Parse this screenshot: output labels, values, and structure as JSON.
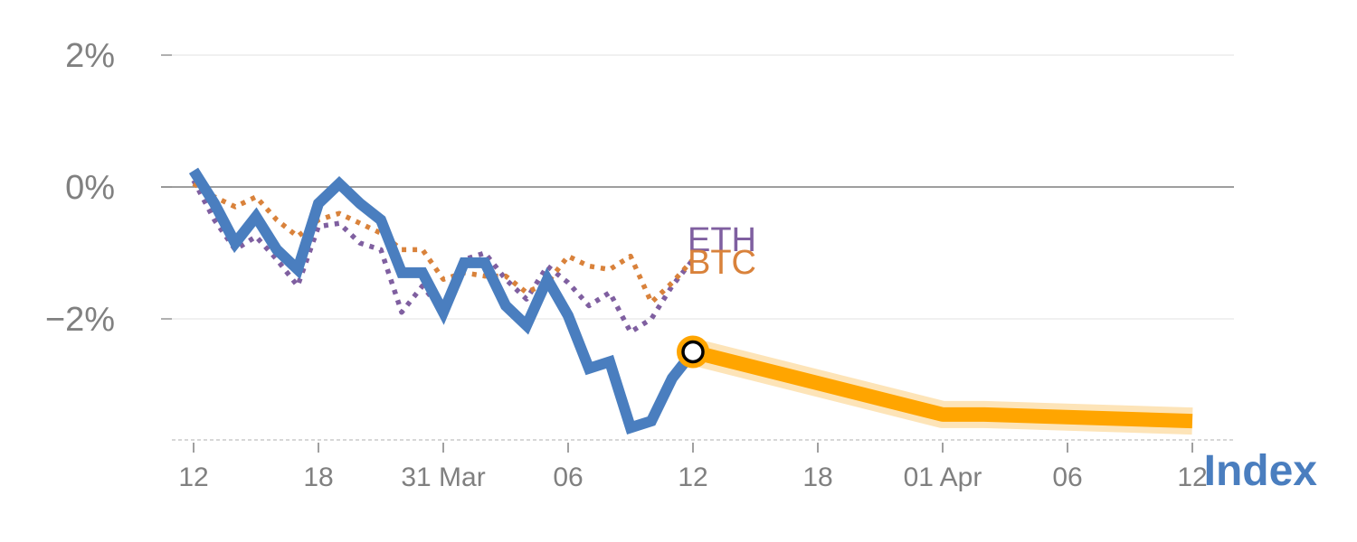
{
  "chart_data": {
    "type": "line",
    "title": "",
    "xlabel": "",
    "ylabel": "",
    "ylim": [
      -3.8,
      2.0
    ],
    "y_ticks": [
      {
        "value": 2,
        "label": "2%"
      },
      {
        "value": 0,
        "label": "0%"
      },
      {
        "value": -2,
        "label": "−2%"
      }
    ],
    "x_ticks": [
      {
        "x": 0,
        "label": "12"
      },
      {
        "x": 6,
        "label": "18"
      },
      {
        "x": 12,
        "label": "31 Mar"
      },
      {
        "x": 18,
        "label": "06"
      },
      {
        "x": 24,
        "label": "12"
      },
      {
        "x": 30,
        "label": "18"
      },
      {
        "x": 36,
        "label": "01 Apr"
      },
      {
        "x": 42,
        "label": "06"
      },
      {
        "x": 48,
        "label": "12"
      }
    ],
    "xlim": [
      -1,
      49
    ],
    "series": [
      {
        "name": "ETH",
        "style": "dotted",
        "color": "#7f5fa0",
        "x": [
          0,
          1,
          2,
          3,
          4,
          5,
          6,
          7,
          8,
          9,
          10,
          11,
          12,
          13,
          14,
          15,
          16,
          17,
          18,
          19,
          20,
          21,
          22,
          23,
          24
        ],
        "values": [
          0.1,
          -0.5,
          -0.95,
          -0.75,
          -1.1,
          -1.5,
          -0.6,
          -0.55,
          -0.85,
          -0.95,
          -1.9,
          -1.5,
          -1.9,
          -1.1,
          -1.0,
          -1.4,
          -1.7,
          -1.2,
          -1.45,
          -1.8,
          -1.6,
          -2.2,
          -2.0,
          -1.5,
          -1.1
        ]
      },
      {
        "name": "BTC",
        "style": "dotted",
        "color": "#d9823b",
        "x": [
          0,
          1,
          2,
          3,
          4,
          5,
          6,
          7,
          8,
          9,
          10,
          11,
          12,
          13,
          14,
          15,
          16,
          17,
          18,
          19,
          20,
          21,
          22,
          23,
          24
        ],
        "values": [
          0.05,
          -0.15,
          -0.3,
          -0.15,
          -0.5,
          -0.75,
          -0.5,
          -0.4,
          -0.55,
          -0.7,
          -0.95,
          -0.95,
          -1.4,
          -1.3,
          -1.35,
          -1.35,
          -1.6,
          -1.45,
          -1.05,
          -1.2,
          -1.25,
          -1.05,
          -1.75,
          -1.45,
          -1.1
        ]
      },
      {
        "name": "Index",
        "style": "solid",
        "color": "#4a7ebf",
        "x": [
          0,
          1,
          2,
          3,
          4,
          5,
          6,
          7,
          8,
          9,
          10,
          11,
          12,
          13,
          14,
          15,
          16,
          17,
          18,
          19,
          20,
          21,
          22,
          23,
          24
        ],
        "values": [
          0.25,
          -0.25,
          -0.85,
          -0.45,
          -0.95,
          -1.25,
          -0.25,
          0.05,
          -0.25,
          -0.5,
          -1.3,
          -1.3,
          -1.9,
          -1.15,
          -1.15,
          -1.8,
          -2.1,
          -1.4,
          -1.95,
          -2.75,
          -2.65,
          -3.65,
          -3.55,
          -2.9,
          -2.5
        ]
      },
      {
        "name": "forecast",
        "style": "band",
        "color": "#ffa500",
        "x": [
          24,
          36,
          38,
          48
        ],
        "values": [
          -2.5,
          -3.45,
          -3.45,
          -3.55
        ]
      }
    ],
    "current_marker": {
      "x": 24,
      "value": -2.5
    },
    "labels": {
      "eth": "ETH",
      "btc": "BTC",
      "index": "Index"
    },
    "colors": {
      "eth": "#7f5fa0",
      "btc": "#d9823b",
      "index": "#4a7ebf",
      "forecast": "#ffa500",
      "forecast_halo": "#fde4b8",
      "zero_line": "#7f7f7f",
      "grid": "#e8e8e8",
      "tick": "#808080"
    },
    "grid": true
  }
}
